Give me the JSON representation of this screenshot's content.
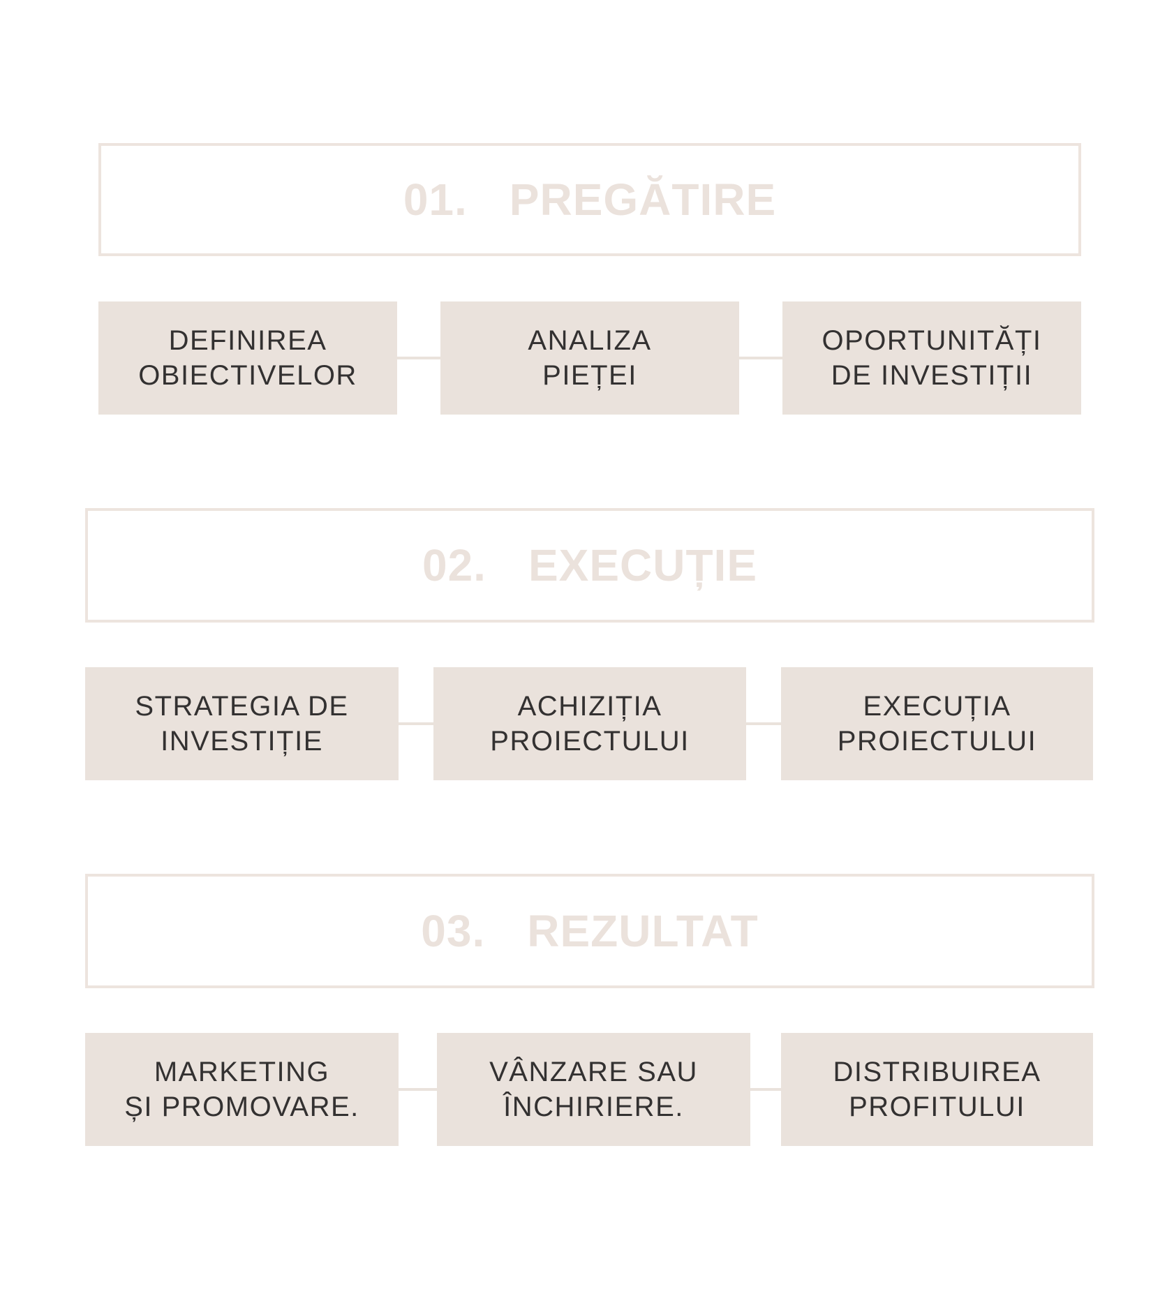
{
  "colors": {
    "phase_border": "#ede4de",
    "phase_text": "#ebe2dc",
    "step_fill": "#eae2dc",
    "step_text": "#333131"
  },
  "phases": [
    {
      "number": "01.",
      "title": "PREGĂTIRE",
      "steps": [
        {
          "label": "DEFINIREA\nOBIECTIVELOR"
        },
        {
          "label": "ANALIZA\nPIEȚEI"
        },
        {
          "label": "OPORTUNITĂȚI\nDE INVESTIȚII"
        }
      ]
    },
    {
      "number": "02.",
      "title": "EXECUȚIE",
      "steps": [
        {
          "label": "STRATEGIA DE\nINVESTIȚIE"
        },
        {
          "label": "ACHIZIȚIA\nPROIECTULUI"
        },
        {
          "label": "EXECUȚIA\nPROIECTULUI"
        }
      ]
    },
    {
      "number": "03.",
      "title": "REZULTAT",
      "steps": [
        {
          "label": "MARKETING\nȘI PROMOVARE."
        },
        {
          "label": "VÂNZARE SAU\nÎNCHIRIERE."
        },
        {
          "label": "DISTRIBUIREA\nPROFITULUI"
        }
      ]
    }
  ]
}
